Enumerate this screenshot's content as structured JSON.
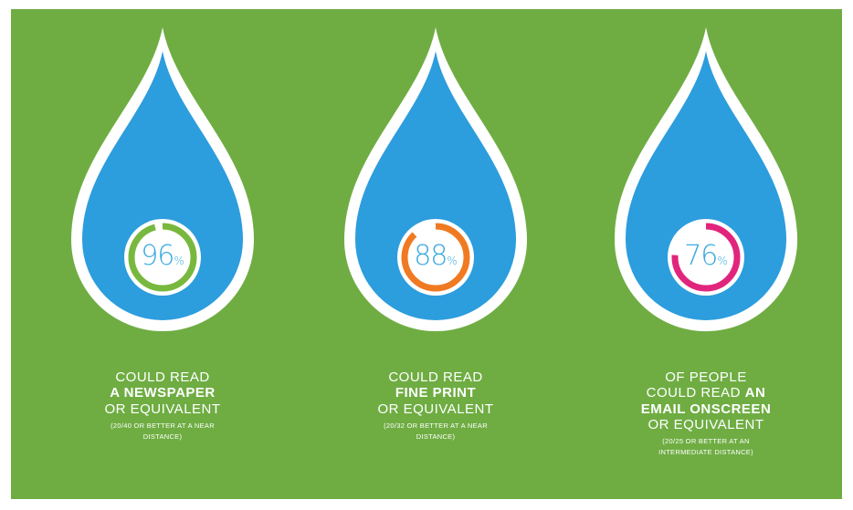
{
  "colors": {
    "background": "#6fad43",
    "drop": "#2c9ddd",
    "ring_track": "#ffffff",
    "accent_green": "#78b83e",
    "accent_orange": "#f07a22",
    "accent_pink": "#e2257c"
  },
  "stats": [
    {
      "value": 96,
      "number": "96",
      "unit": "%",
      "ring_color": "#78b83e",
      "caption_line1": "COULD READ",
      "caption_bold": "A NEWSPAPER",
      "caption_line3": "OR EQUIVALENT",
      "note": "(20/40 OR BETTER AT A NEAR DISTANCE)"
    },
    {
      "value": 88,
      "number": "88",
      "unit": "%",
      "ring_color": "#f07a22",
      "caption_line1": "COULD READ",
      "caption_bold": "FINE PRINT",
      "caption_line3": "OR EQUIVALENT",
      "note": "(20/32 OR BETTER AT A NEAR DISTANCE)"
    },
    {
      "value": 76,
      "number": "76",
      "unit": "%",
      "ring_color": "#e2257c",
      "caption_line1": "OF PEOPLE",
      "caption_line2a": "COULD READ",
      "caption_line2b": "AN",
      "caption_bold": "EMAIL ONSCREEN",
      "caption_line3": "OR EQUIVALENT",
      "note": "(20/25 OR BETTER AT AN INTERMEDIATE DISTANCE)"
    }
  ]
}
